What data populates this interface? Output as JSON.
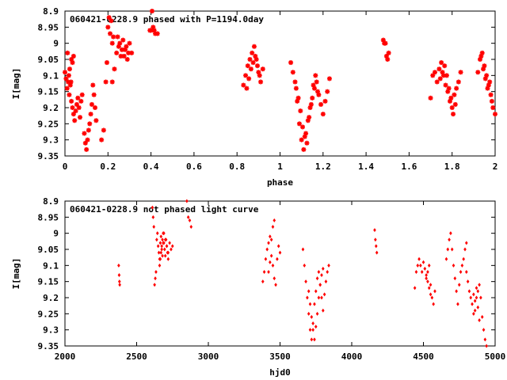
{
  "colors": {
    "points": "#ff0000",
    "frame": "#000000",
    "background": "#ffffff"
  },
  "chart_data": [
    {
      "type": "scatter",
      "title": "060421-0228.9 phased with P=1194.0day",
      "xlabel": "phase",
      "ylabel": "I[mag]",
      "xlim": [
        0,
        2
      ],
      "ylim": [
        9.35,
        8.9
      ],
      "y_inverted": true,
      "grid": false,
      "marker": "asterisk",
      "x_ticks": [
        0,
        0.2,
        0.4,
        0.6,
        0.8,
        1,
        1.2,
        1.4,
        1.6,
        1.8,
        2
      ],
      "x_tick_labels": [
        "0",
        "0.2",
        "0.4",
        "0.6",
        "0.8",
        "1",
        "1.2",
        "1.4",
        "1.6",
        "1.8",
        "2"
      ],
      "y_ticks": [
        8.9,
        8.95,
        9.0,
        9.05,
        9.1,
        9.15,
        9.2,
        9.25,
        9.3,
        9.35
      ],
      "y_tick_labels": [
        "8.9",
        "8.95",
        "9",
        "9.05",
        "9.1",
        "9.15",
        "9.2",
        "9.25",
        "9.3",
        "9.35"
      ],
      "series": [
        {
          "x": [
            0.0,
            0.005,
            0.01,
            0.015,
            0.02,
            0.025,
            0.03,
            0.035,
            0.04,
            0.012,
            0.018,
            0.022,
            0.028,
            0.03,
            0.035,
            0.04,
            0.045,
            0.05,
            0.055,
            0.06,
            0.065,
            0.07,
            0.075,
            0.08,
            0.09,
            0.095,
            0.1,
            0.105,
            0.11,
            0.115,
            0.12,
            0.125,
            0.13,
            0.135,
            0.14,
            0.145,
            0.17,
            0.18,
            0.19,
            0.2,
            0.21,
            0.22,
            0.205,
            0.215,
            0.225,
            0.195,
            0.22,
            0.23,
            0.24,
            0.25,
            0.26,
            0.27,
            0.28,
            0.29,
            0.3,
            0.31,
            0.245,
            0.255,
            0.265,
            0.275,
            0.285,
            0.295,
            0.4,
            0.405,
            0.41,
            0.415,
            0.42,
            0.395,
            0.43,
            0.83,
            0.84,
            0.85,
            0.86,
            0.87,
            0.88,
            0.89,
            0.9,
            0.91,
            0.92,
            0.845,
            0.855,
            0.865,
            0.875,
            0.885,
            0.895,
            0.905,
            1.05,
            1.06,
            1.07,
            1.08,
            1.09,
            1.1,
            1.11,
            1.12,
            1.13,
            1.14,
            1.15,
            1.16,
            1.17,
            1.18,
            1.19,
            1.2,
            1.21,
            1.22,
            1.23,
            1.075,
            1.085,
            1.095,
            1.105,
            1.115,
            1.125,
            1.135,
            1.145,
            1.155,
            1.165,
            1.175,
            1.48,
            1.485,
            1.49,
            1.495,
            1.5,
            1.505,
            1.7,
            1.71,
            1.72,
            1.73,
            1.74,
            1.75,
            1.76,
            1.77,
            1.78,
            1.79,
            1.8,
            1.81,
            1.82,
            1.83,
            1.84,
            1.745,
            1.755,
            1.765,
            1.775,
            1.785,
            1.795,
            1.805,
            1.815,
            1.92,
            1.93,
            1.94,
            1.95,
            1.96,
            1.97,
            1.98,
            1.99,
            2.0,
            1.935,
            1.945,
            1.955,
            1.965,
            1.975,
            1.985
          ],
          "y": [
            9.09,
            9.11,
            9.14,
            9.12,
            9.16,
            9.13,
            9.05,
            9.06,
            9.04,
            9.03,
            9.1,
            9.08,
            9.12,
            9.18,
            9.2,
            9.22,
            9.24,
            9.21,
            9.19,
            9.17,
            9.2,
            9.23,
            9.18,
            9.16,
            9.28,
            9.31,
            9.33,
            9.3,
            9.27,
            9.25,
            9.22,
            9.19,
            9.13,
            9.16,
            9.2,
            9.24,
            9.3,
            9.27,
            9.12,
            8.95,
            8.97,
            9.0,
            8.92,
            8.93,
            8.98,
            9.06,
            9.12,
            9.08,
            9.03,
            9.01,
            9.04,
            8.99,
            9.02,
            9.05,
            9.0,
            9.03,
            8.98,
            9.0,
            9.02,
            9.04,
            9.01,
            9.03,
            8.96,
            8.9,
            8.95,
            8.96,
            8.97,
            8.96,
            8.97,
            9.13,
            9.1,
            9.07,
            9.05,
            9.03,
            9.01,
            9.05,
            9.09,
            9.12,
            9.08,
            9.14,
            9.11,
            9.08,
            9.06,
            9.04,
            9.07,
            9.1,
            9.06,
            9.09,
            9.12,
            9.18,
            9.25,
            9.3,
            9.33,
            9.28,
            9.24,
            9.2,
            9.17,
            9.14,
            9.12,
            9.16,
            9.19,
            9.22,
            9.18,
            9.15,
            9.11,
            9.14,
            9.17,
            9.21,
            9.26,
            9.29,
            9.31,
            9.23,
            9.19,
            9.13,
            9.1,
            9.15,
            8.99,
            9.0,
            9.0,
            9.04,
            9.05,
            9.03,
            9.17,
            9.1,
            9.09,
            9.12,
            9.08,
            9.06,
            9.1,
            9.13,
            9.15,
            9.18,
            9.2,
            9.16,
            9.14,
            9.12,
            9.09,
            9.11,
            9.09,
            9.07,
            9.1,
            9.14,
            9.17,
            9.22,
            9.19,
            9.09,
            9.05,
            9.03,
            9.07,
            9.1,
            9.13,
            9.16,
            9.2,
            9.22,
            9.04,
            9.08,
            9.11,
            9.14,
            9.12,
            9.18
          ]
        }
      ]
    },
    {
      "type": "scatter",
      "title": "060421-0228.9 not phased light curve",
      "xlabel": "hjd0",
      "ylabel": "I[mag]",
      "xlim": [
        2000,
        5000
      ],
      "ylim": [
        9.35,
        8.9
      ],
      "y_inverted": true,
      "grid": false,
      "marker": "diamond",
      "x_ticks": [
        2000,
        2500,
        3000,
        3500,
        4000,
        4500,
        5000
      ],
      "x_tick_labels": [
        "2000",
        "2500",
        "3000",
        "3500",
        "4000",
        "4500",
        "5000"
      ],
      "y_ticks": [
        8.9,
        8.95,
        9.0,
        9.05,
        9.1,
        9.15,
        9.2,
        9.25,
        9.3,
        9.35
      ],
      "y_tick_labels": [
        "8.9",
        "8.95",
        "9",
        "9.05",
        "9.1",
        "9.15",
        "9.2",
        "9.25",
        "9.3",
        "9.35"
      ],
      "series": [
        {
          "x": [
            2375,
            2378,
            2380,
            2382,
            2610,
            2615,
            2620,
            2625,
            2630,
            2635,
            2640,
            2645,
            2650,
            2655,
            2660,
            2665,
            2670,
            2675,
            2680,
            2685,
            2690,
            2700,
            2710,
            2720,
            2730,
            2740,
            2750,
            2660,
            2665,
            2670,
            2675,
            2680,
            2685,
            2690,
            2695,
            2700,
            2705,
            2710,
            2715,
            2720,
            2850,
            2860,
            2870,
            2880,
            3380,
            3390,
            3400,
            3410,
            3420,
            3430,
            3440,
            3450,
            3460,
            3470,
            3480,
            3490,
            3500,
            3420,
            3430,
            3440,
            3450,
            3460,
            3660,
            3670,
            3680,
            3690,
            3700,
            3710,
            3720,
            3730,
            3740,
            3750,
            3760,
            3770,
            3780,
            3790,
            3800,
            3810,
            3820,
            3830,
            3840,
            3700,
            3710,
            3720,
            3730,
            3740,
            3750,
            3760,
            3770,
            3780,
            3790,
            3800,
            4160,
            4165,
            4170,
            4175,
            4440,
            4450,
            4460,
            4470,
            4480,
            4490,
            4500,
            4510,
            4520,
            4530,
            4540,
            4550,
            4560,
            4570,
            4580,
            4520,
            4530,
            4540,
            4550,
            4660,
            4670,
            4680,
            4690,
            4700,
            4710,
            4720,
            4730,
            4740,
            4750,
            4760,
            4770,
            4780,
            4790,
            4800,
            4800,
            4810,
            4820,
            4830,
            4840,
            4850,
            4860,
            4870,
            4880,
            4890,
            4900,
            4910,
            4920,
            4930,
            4940,
            4850,
            4860,
            4870,
            4880,
            4890
          ],
          "y": [
            9.1,
            9.13,
            9.15,
            9.16,
            8.92,
            8.95,
            8.98,
            9.16,
            9.14,
            9.12,
            9.02,
            9.0,
            9.04,
            9.06,
            9.08,
            9.03,
            9.01,
            9.05,
            9.07,
            9.03,
            9.0,
            9.02,
            9.04,
            9.06,
            9.03,
            9.05,
            9.04,
            9.1,
            9.08,
            9.06,
            9.04,
            9.02,
            9.0,
            9.03,
            9.05,
            9.07,
            9.02,
            9.04,
            9.06,
            9.08,
            8.9,
            8.95,
            8.96,
            8.98,
            9.15,
            9.12,
            9.08,
            9.05,
            9.03,
            9.01,
            9.07,
            9.1,
            9.14,
            9.16,
            9.08,
            9.04,
            9.06,
            9.12,
            9.09,
            9.02,
            8.98,
            8.96,
            9.05,
            9.1,
            9.15,
            9.2,
            9.25,
            9.3,
            9.33,
            9.28,
            9.22,
            9.18,
            9.14,
            9.12,
            9.16,
            9.2,
            9.24,
            9.19,
            9.15,
            9.12,
            9.1,
            9.18,
            9.22,
            9.26,
            9.3,
            9.33,
            9.29,
            9.25,
            9.2,
            9.16,
            9.13,
            9.11,
            8.99,
            9.02,
            9.04,
            9.06,
            9.17,
            9.12,
            9.1,
            9.08,
            9.1,
            9.12,
            9.09,
            9.11,
            9.13,
            9.15,
            9.17,
            9.19,
            9.2,
            9.22,
            9.18,
            9.14,
            9.12,
            9.1,
            9.16,
            9.08,
            9.05,
            9.02,
            9.0,
            9.05,
            9.1,
            9.14,
            9.18,
            9.22,
            9.16,
            9.12,
            9.1,
            9.08,
            9.05,
            9.03,
            9.12,
            9.15,
            9.18,
            9.2,
            9.22,
            9.25,
            9.24,
            9.2,
            9.18,
            9.16,
            9.2,
            9.26,
            9.3,
            9.33,
            9.35,
            9.19,
            9.21,
            9.17,
            9.23,
            9.27
          ]
        }
      ]
    }
  ]
}
